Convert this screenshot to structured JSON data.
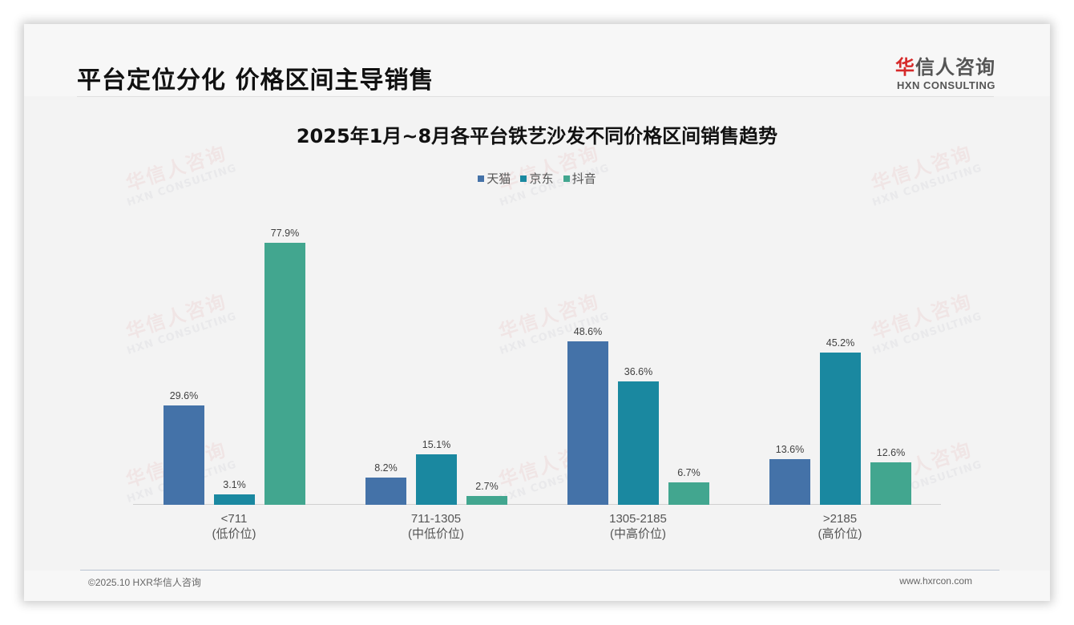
{
  "page": {
    "title": "平台定位分化 价格区间主导销售",
    "logo": {
      "cn_red": "华",
      "cn_rest": "信人咨询",
      "en": "HXN CONSULTING"
    },
    "watermark": {
      "cn": "华信人咨询",
      "en": "HXN CONSULTING"
    },
    "footer": {
      "left": "©2025.10 HXR华信人咨询",
      "right": "www.hxrcon.com"
    }
  },
  "colors": {
    "tmall": "#4472a8",
    "jd": "#1a88a0",
    "douyin": "#42a68f"
  },
  "chart_data": {
    "type": "bar",
    "title": "2025年1月~8月各平台铁艺沙发不同价格区间销售趋势",
    "categories": [
      "<711",
      "711-1305",
      "1305-2185",
      ">2185"
    ],
    "category_sublabels": [
      "(低价位)",
      "(中低价位)",
      "(中高价位)",
      "(高价位)"
    ],
    "series": [
      {
        "name": "天猫",
        "values": [
          29.6,
          8.2,
          48.6,
          13.6
        ],
        "labels": [
          "29.6%",
          "8.2%",
          "48.6%",
          "13.6%"
        ]
      },
      {
        "name": "京东",
        "values": [
          3.1,
          15.1,
          36.6,
          45.2
        ],
        "labels": [
          "3.1%",
          "15.1%",
          "36.6%",
          "45.2%"
        ]
      },
      {
        "name": "抖音",
        "values": [
          77.9,
          2.7,
          6.7,
          12.6
        ],
        "labels": [
          "77.9%",
          "2.7%",
          "6.7%",
          "12.6%"
        ]
      }
    ],
    "xlabel": "",
    "ylabel": "",
    "ylim": [
      0,
      100
    ],
    "grid": false,
    "legend_position": "top",
    "unit": "%"
  }
}
